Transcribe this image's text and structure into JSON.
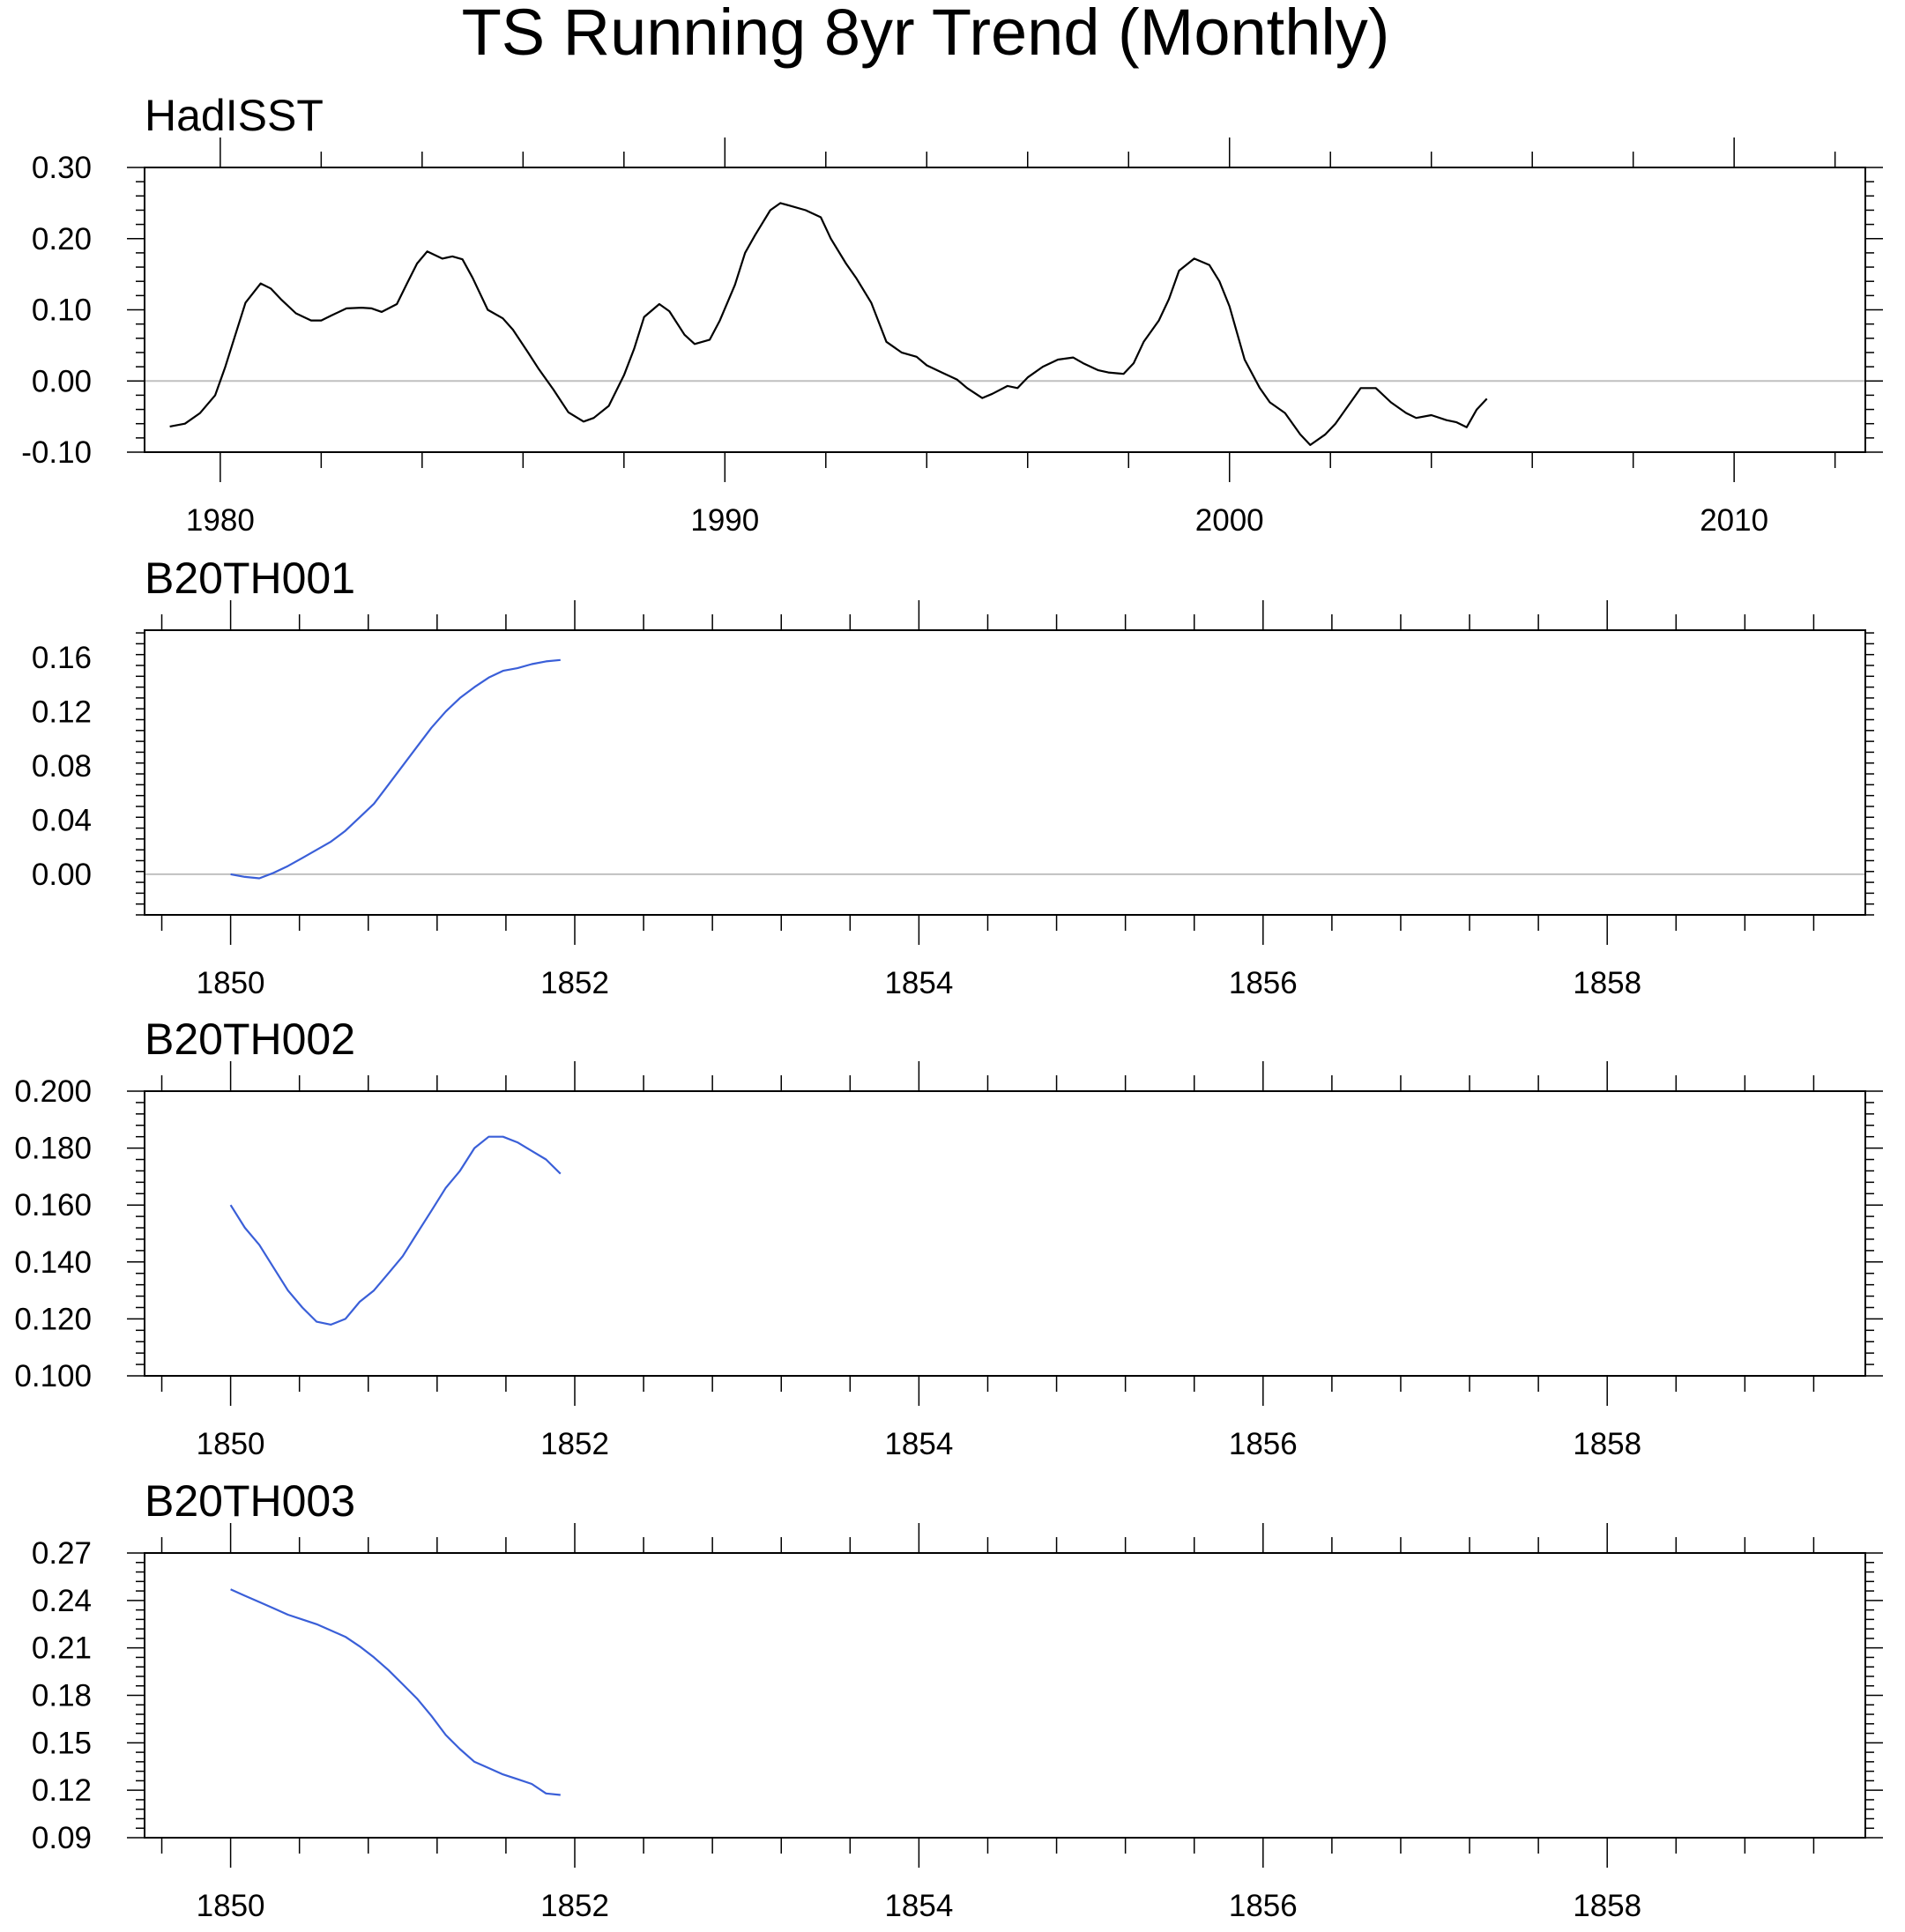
{
  "figure": {
    "title": "TS Running 8yr Trend (Monthly)"
  },
  "colors": {
    "frame": "#000000",
    "zero_line": "#c0c0c0",
    "obs_series": "#000000",
    "model_series": "#3a5fd8"
  },
  "chart_data": [
    {
      "type": "line",
      "title": "HadISST",
      "xlim": [
        1978.5,
        2012.6
      ],
      "ylim": [
        -0.1,
        0.3
      ],
      "x_ticks": [
        1980,
        1990,
        2000,
        2010
      ],
      "x_tick_labels": [
        "1980",
        "1990",
        "2000",
        "2010"
      ],
      "y_ticks": [
        -0.1,
        0.0,
        0.1,
        0.2,
        0.3
      ],
      "y_tick_labels": [
        "-0.10",
        "0.00",
        "0.10",
        "0.20",
        "0.30"
      ],
      "reference_line": 0,
      "series": [
        {
          "color_key": "obs_series",
          "x": [
            1979.0,
            1979.3,
            1979.6,
            1979.9,
            1980.1,
            1980.3,
            1980.5,
            1980.8,
            1981.0,
            1981.2,
            1981.5,
            1981.8,
            1982.0,
            1982.2,
            1982.5,
            1982.8,
            1983.0,
            1983.2,
            1983.5,
            1983.7,
            1983.9,
            1984.1,
            1984.4,
            1984.6,
            1984.8,
            1985.0,
            1985.3,
            1985.6,
            1985.8,
            1986.1,
            1986.3,
            1986.6,
            1986.9,
            1987.2,
            1987.4,
            1987.7,
            1988.0,
            1988.2,
            1988.4,
            1988.7,
            1988.9,
            1989.2,
            1989.4,
            1989.7,
            1989.9,
            1990.2,
            1990.4,
            1990.6,
            1990.9,
            1991.1,
            1991.3,
            1991.6,
            1991.9,
            1992.1,
            1992.4,
            1992.6,
            1992.9,
            1993.2,
            1993.5,
            1993.8,
            1994.0,
            1994.3,
            1994.6,
            1994.8,
            1995.1,
            1995.3,
            1995.6,
            1995.8,
            1996.0,
            1996.3,
            1996.6,
            1996.9,
            1997.1,
            1997.4,
            1997.6,
            1997.9,
            1998.1,
            1998.3,
            1998.6,
            1998.8,
            1999.0,
            1999.3,
            1999.6,
            1999.8,
            2000.0,
            2000.3,
            2000.6,
            2000.8,
            2001.1,
            2001.4,
            2001.6,
            2001.9,
            2002.1,
            2002.4,
            2002.6,
            2002.9,
            2003.2,
            2003.5,
            2003.7,
            2004.0,
            2004.3,
            2004.5,
            2004.7,
            2004.9,
            2005.1
          ],
          "y": [
            -0.064,
            -0.06,
            -0.045,
            -0.02,
            0.02,
            0.065,
            0.11,
            0.137,
            0.13,
            0.115,
            0.095,
            0.085,
            0.085,
            0.092,
            0.102,
            0.103,
            0.102,
            0.097,
            0.108,
            0.137,
            0.165,
            0.182,
            0.172,
            0.175,
            0.171,
            0.145,
            0.1,
            0.088,
            0.072,
            0.04,
            0.018,
            -0.012,
            -0.044,
            -0.057,
            -0.052,
            -0.035,
            0.008,
            0.045,
            0.09,
            0.108,
            0.098,
            0.065,
            0.052,
            0.058,
            0.085,
            0.135,
            0.18,
            0.205,
            0.24,
            0.25,
            0.246,
            0.24,
            0.23,
            0.2,
            0.165,
            0.145,
            0.11,
            0.055,
            0.04,
            0.034,
            0.022,
            0.012,
            0.002,
            -0.01,
            -0.024,
            -0.018,
            -0.007,
            -0.01,
            0.005,
            0.02,
            0.03,
            0.033,
            0.025,
            0.015,
            0.012,
            0.01,
            0.025,
            0.055,
            0.085,
            0.115,
            0.155,
            0.172,
            0.163,
            0.14,
            0.105,
            0.03,
            -0.01,
            -0.03,
            -0.045,
            -0.075,
            -0.09,
            -0.075,
            -0.06,
            -0.03,
            -0.01,
            -0.01,
            -0.03,
            -0.045,
            -0.052,
            -0.048,
            -0.055,
            -0.058,
            -0.065,
            -0.04,
            -0.025
          ]
        }
      ]
    },
    {
      "type": "line",
      "title": "B20TH001",
      "xlim": [
        1849.5,
        1859.5
      ],
      "ylim": [
        -0.03,
        0.18
      ],
      "x_ticks": [
        1850,
        1852,
        1854,
        1856,
        1858
      ],
      "x_tick_labels": [
        "1850",
        "1852",
        "1854",
        "1856",
        "1858"
      ],
      "y_ticks": [
        0.0,
        0.04,
        0.08,
        0.12,
        0.16
      ],
      "y_tick_labels": [
        "0.00",
        "0.04",
        "0.08",
        "0.12",
        "0.16"
      ],
      "reference_line": 0,
      "series": [
        {
          "color_key": "model_series",
          "x": [
            1850.0,
            1850.083,
            1850.167,
            1850.25,
            1850.333,
            1850.417,
            1850.5,
            1850.583,
            1850.667,
            1850.75,
            1850.833,
            1850.917,
            1851.0,
            1851.083,
            1851.167,
            1851.25,
            1851.333,
            1851.417,
            1851.5,
            1851.583,
            1851.667,
            1851.75,
            1851.833,
            1851.917
          ],
          "y": [
            0.0,
            -0.002,
            -0.003,
            0.001,
            0.006,
            0.012,
            0.018,
            0.024,
            0.032,
            0.042,
            0.052,
            0.066,
            0.08,
            0.094,
            0.108,
            0.12,
            0.13,
            0.138,
            0.145,
            0.15,
            0.152,
            0.155,
            0.157,
            0.158
          ]
        }
      ]
    },
    {
      "type": "line",
      "title": "B20TH002",
      "xlim": [
        1849.5,
        1859.5
      ],
      "ylim": [
        0.1,
        0.2
      ],
      "x_ticks": [
        1850,
        1852,
        1854,
        1856,
        1858
      ],
      "x_tick_labels": [
        "1850",
        "1852",
        "1854",
        "1856",
        "1858"
      ],
      "y_ticks": [
        0.1,
        0.12,
        0.14,
        0.16,
        0.18,
        0.2
      ],
      "y_tick_labels": [
        "0.100",
        "0.120",
        "0.140",
        "0.160",
        "0.180",
        "0.200"
      ],
      "reference_line": null,
      "series": [
        {
          "color_key": "model_series",
          "x": [
            1850.0,
            1850.083,
            1850.167,
            1850.25,
            1850.333,
            1850.417,
            1850.5,
            1850.583,
            1850.667,
            1850.75,
            1850.833,
            1850.917,
            1851.0,
            1851.083,
            1851.167,
            1851.25,
            1851.333,
            1851.417,
            1851.5,
            1851.583,
            1851.667,
            1851.75,
            1851.833,
            1851.917
          ],
          "y": [
            0.16,
            0.152,
            0.146,
            0.138,
            0.13,
            0.124,
            0.119,
            0.118,
            0.12,
            0.126,
            0.13,
            0.136,
            0.142,
            0.15,
            0.158,
            0.166,
            0.172,
            0.18,
            0.184,
            0.184,
            0.182,
            0.179,
            0.176,
            0.171
          ]
        }
      ]
    },
    {
      "type": "line",
      "title": "B20TH003",
      "xlim": [
        1849.5,
        1859.5
      ],
      "ylim": [
        0.09,
        0.27
      ],
      "x_ticks": [
        1850,
        1852,
        1854,
        1856,
        1858
      ],
      "x_tick_labels": [
        "1850",
        "1852",
        "1854",
        "1856",
        "1858"
      ],
      "y_ticks": [
        0.09,
        0.12,
        0.15,
        0.18,
        0.21,
        0.24,
        0.27
      ],
      "y_tick_labels": [
        "0.09",
        "0.12",
        "0.15",
        "0.18",
        "0.21",
        "0.24",
        "0.27"
      ],
      "reference_line": null,
      "series": [
        {
          "color_key": "model_series",
          "x": [
            1850.0,
            1850.083,
            1850.167,
            1850.25,
            1850.333,
            1850.417,
            1850.5,
            1850.583,
            1850.667,
            1850.75,
            1850.833,
            1850.917,
            1851.0,
            1851.083,
            1851.167,
            1851.25,
            1851.333,
            1851.417,
            1851.5,
            1851.583,
            1851.667,
            1851.75,
            1851.833,
            1851.917
          ],
          "y": [
            0.247,
            0.243,
            0.239,
            0.235,
            0.231,
            0.228,
            0.225,
            0.221,
            0.217,
            0.211,
            0.204,
            0.196,
            0.187,
            0.178,
            0.167,
            0.155,
            0.146,
            0.138,
            0.134,
            0.13,
            0.127,
            0.124,
            0.118,
            0.117
          ]
        }
      ]
    }
  ]
}
